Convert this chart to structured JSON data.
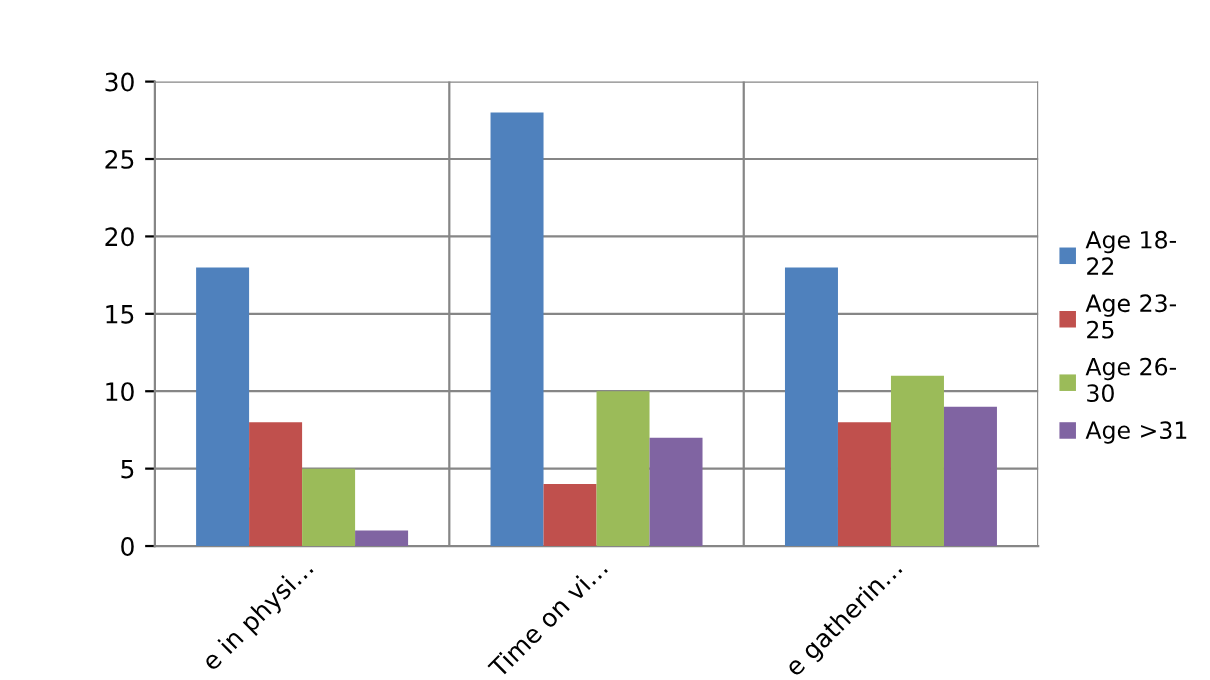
{
  "chart_data": {
    "type": "bar",
    "categories": [
      "e in physi…",
      "Time on vi…",
      "e gatherin…"
    ],
    "series": [
      {
        "name": "Age 18-\n22",
        "color": "#4f81bd",
        "values": [
          18,
          28,
          18
        ]
      },
      {
        "name": "Age 23-\n25",
        "color": "#c0504d",
        "values": [
          8,
          4,
          8
        ]
      },
      {
        "name": "Age 26-\n30",
        "color": "#9bbb59",
        "values": [
          5,
          10,
          11
        ]
      },
      {
        "name": "Age >31",
        "color": "#8064a2",
        "values": [
          1,
          7,
          9
        ]
      }
    ],
    "ylim": [
      0,
      30
    ],
    "yticks": [
      0,
      5,
      10,
      15,
      20,
      25,
      30
    ],
    "grid": true,
    "legend": "right"
  }
}
